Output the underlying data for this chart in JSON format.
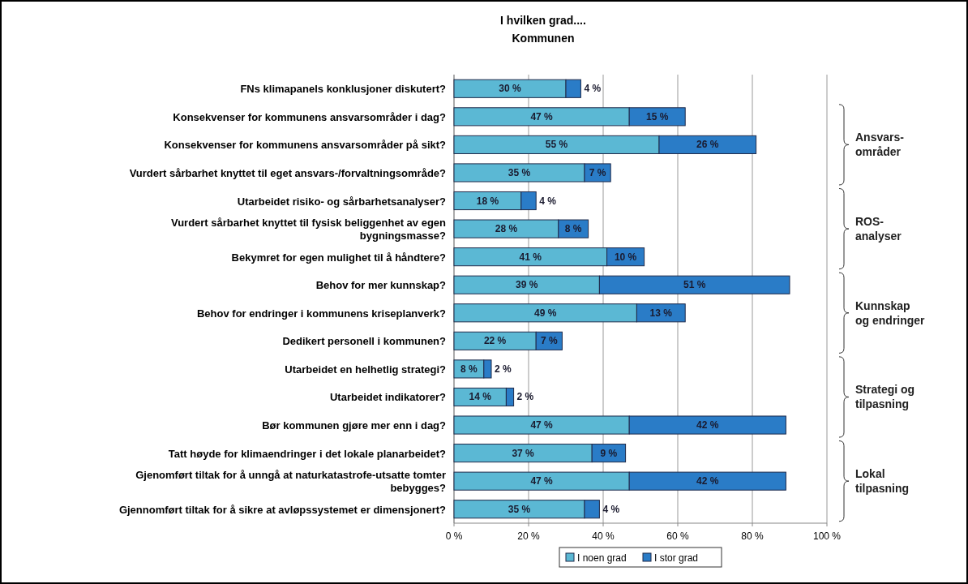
{
  "chart_data": {
    "type": "bar",
    "orientation": "horizontal",
    "stacked": true,
    "title": "I hvilken grad....",
    "subtitle": "Kommunen",
    "categories": [
      "FNs klimapanels konklusjoner diskutert?",
      "Konsekvenser for kommunens ansvarsområder i dag?",
      "Konsekvenser for kommunens ansvarsområder på sikt?",
      "Vurdert sårbarhet knyttet til eget ansvars-/forvaltningsområde?",
      "Utarbeidet risiko- og sårbarhetsanalyser?",
      "Vurdert sårbarhet knyttet til fysisk beliggenhet av egen bygningsmasse?",
      "Bekymret for egen mulighet til å håndtere?",
      "Behov for mer kunnskap?",
      "Behov for endringer i kommunens kriseplanverk?",
      "Dedikert personell i kommunen?",
      "Utarbeidet en helhetlig strategi?",
      "Utarbeidet indikatorer?",
      "Bør kommunen gjøre mer enn i dag?",
      "Tatt høyde for klimaendringer i det lokale planarbeidet?",
      "Gjenomført tiltak for å unngå at naturkatastrofe-utsatte tomter bebygges?",
      "Gjennomført tiltak for å sikre at avløpssystemet er dimensjonert?"
    ],
    "series": [
      {
        "name": "I noen grad",
        "color": "#5bb8d4",
        "values": [
          30,
          47,
          55,
          35,
          18,
          28,
          41,
          39,
          49,
          22,
          8,
          14,
          47,
          37,
          47,
          35
        ],
        "value_labels": [
          "30 %",
          "47 %",
          "55 %",
          "35 %",
          "18 %",
          "28 %",
          "41 %",
          "39 %",
          "49 %",
          "22 %",
          "8 %",
          "14 %",
          "47 %",
          "37 %",
          "47 %",
          "35 %"
        ]
      },
      {
        "name": "I stor grad",
        "color": "#2a7cc7",
        "values": [
          4,
          15,
          26,
          7,
          4,
          8,
          10,
          51,
          13,
          7,
          2,
          2,
          42,
          9,
          42,
          4
        ],
        "value_labels": [
          "4 %",
          "15 %",
          "26 %",
          "7 %",
          "4 %",
          "8 %",
          "10 %",
          "51 %",
          "13 %",
          "7 %",
          "2 %",
          "2 %",
          "42 %",
          "9 %",
          "42 %",
          "4 %"
        ]
      }
    ],
    "xlim": [
      0,
      100
    ],
    "xticks": [
      {
        "value": 0,
        "label": "0 %"
      },
      {
        "value": 20,
        "label": "20 %"
      },
      {
        "value": 40,
        "label": "40 %"
      },
      {
        "value": 60,
        "label": "60 %"
      },
      {
        "value": 80,
        "label": "80 %"
      },
      {
        "value": 100,
        "label": "100 %"
      }
    ],
    "grid": "x",
    "legend": "bottom",
    "annotations": [
      "Ansvars-\nområder",
      "ROS-\nanalyser",
      "Kunnskap\nog endringer",
      "Strategi og\ntilpasning",
      "Lokal\ntilpasning"
    ]
  }
}
